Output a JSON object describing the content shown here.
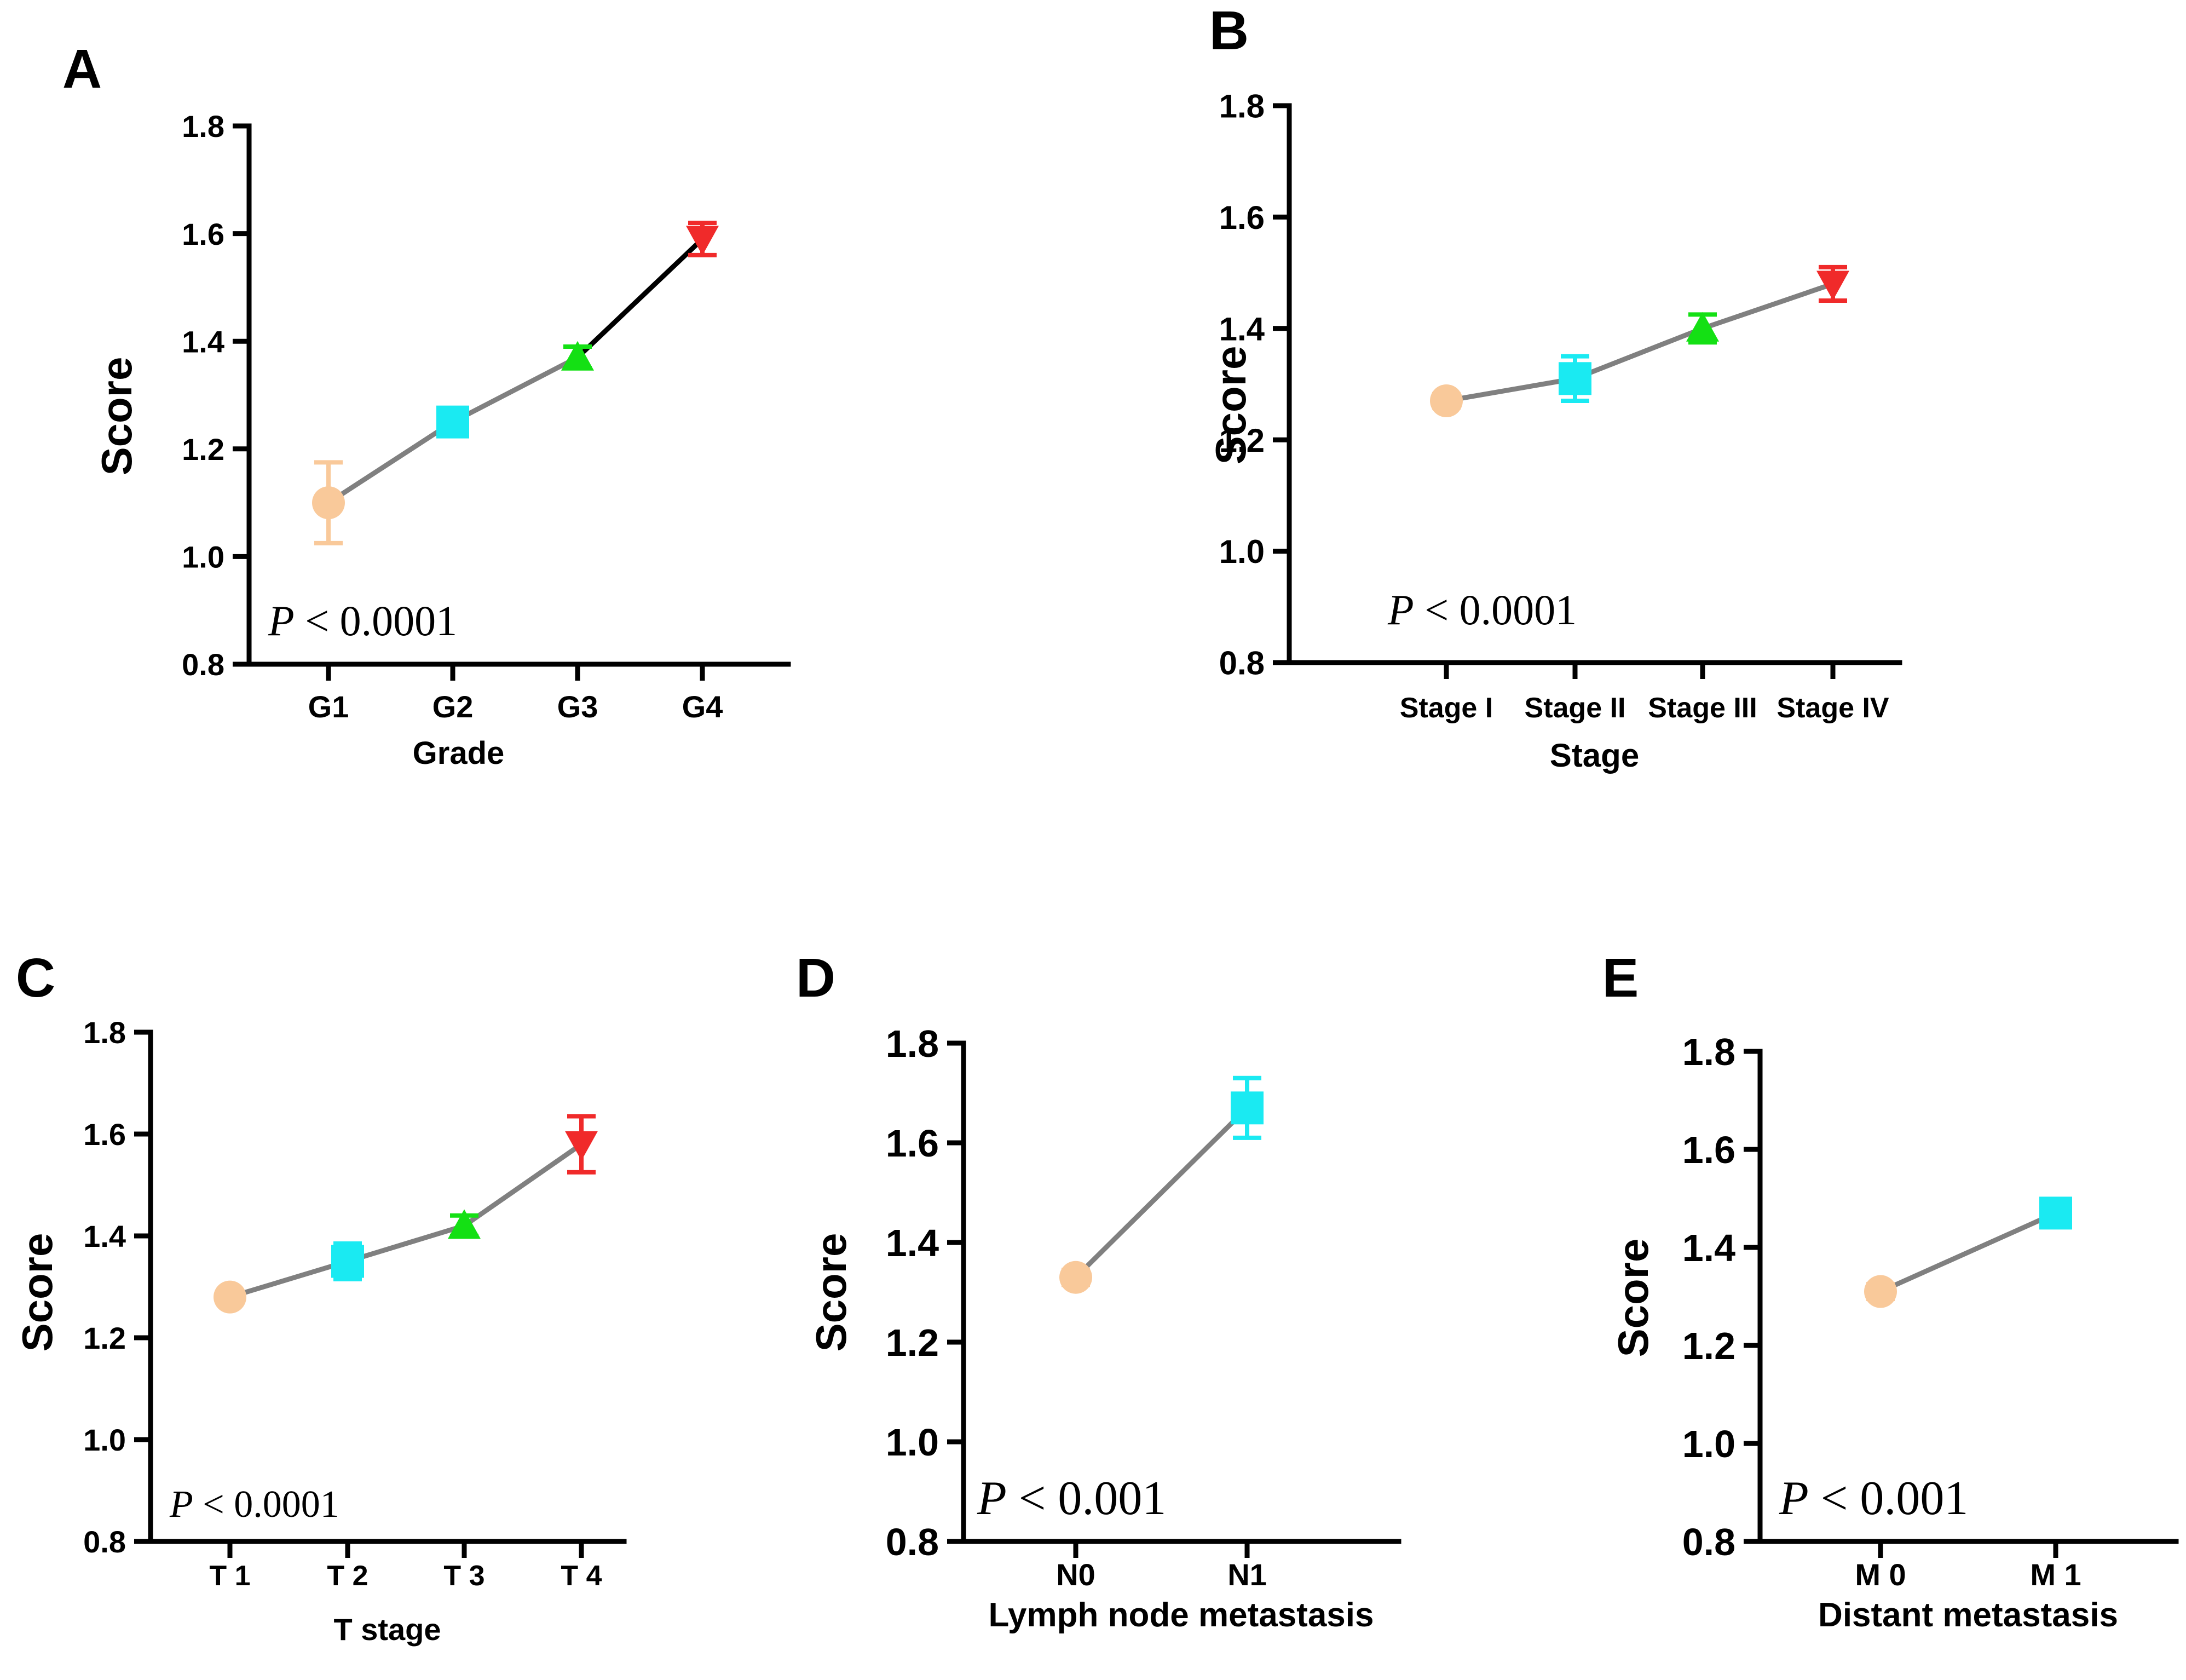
{
  "colors": {
    "orange": "#F9C99A",
    "cyan": "#1AEAF2",
    "green": "#14E014",
    "red": "#F02A2A",
    "line": "#808080",
    "line_dark": "#000000"
  },
  "chart_data": [
    {
      "panel": "A",
      "type": "line",
      "xlabel": "Grade",
      "ylabel": "Score",
      "ylim": [
        0.8,
        1.8
      ],
      "yticks": [
        "0.8",
        "1.0",
        "1.2",
        "1.4",
        "1.6",
        "1.8"
      ],
      "categories": [
        "G1",
        "G2",
        "G3",
        "G4"
      ],
      "values": [
        1.1,
        1.25,
        1.37,
        1.59
      ],
      "errors": [
        0.075,
        0.015,
        0.02,
        0.03
      ],
      "markers": [
        "circle",
        "square",
        "triangle-up",
        "triangle-down"
      ],
      "p_prefix": "P",
      "p_text": " < 0.0001",
      "grid": false
    },
    {
      "panel": "B",
      "type": "line",
      "xlabel": "Stage",
      "ylabel": "Score",
      "ylim": [
        0.8,
        1.8
      ],
      "yticks": [
        "0.8",
        "1.0",
        "1.2",
        "1.4",
        "1.6",
        "1.8"
      ],
      "categories": [
        "Stage I",
        "Stage II",
        "Stage III",
        "Stage IV"
      ],
      "values": [
        1.27,
        1.31,
        1.4,
        1.48
      ],
      "errors": [
        0.012,
        0.04,
        0.025,
        0.03
      ],
      "markers": [
        "circle",
        "square",
        "triangle-up",
        "triangle-down"
      ],
      "p_prefix": "P",
      "p_text": " < 0.0001",
      "grid": false
    },
    {
      "panel": "C",
      "type": "line",
      "xlabel": "T stage",
      "ylabel": "Score",
      "ylim": [
        0.8,
        1.8
      ],
      "yticks": [
        "0.8",
        "1.0",
        "1.2",
        "1.4",
        "1.6",
        "1.8"
      ],
      "categories": [
        "T 1",
        "T 2",
        "T 3",
        "T 4"
      ],
      "values": [
        1.28,
        1.35,
        1.42,
        1.58
      ],
      "errors": [
        0.01,
        0.035,
        0.02,
        0.055
      ],
      "markers": [
        "circle",
        "square",
        "triangle-up",
        "triangle-down"
      ],
      "p_prefix": "P",
      "p_text": " < 0.0001",
      "grid": false
    },
    {
      "panel": "D",
      "type": "line",
      "xlabel": "Lymph node metastasis",
      "ylabel": "Score",
      "ylim": [
        0.8,
        1.8
      ],
      "yticks": [
        "0.8",
        "1.0",
        "1.2",
        "1.4",
        "1.6",
        "1.8"
      ],
      "categories": [
        "N0",
        "N1"
      ],
      "values": [
        1.33,
        1.67
      ],
      "errors": [
        0.015,
        0.06
      ],
      "markers": [
        "circle",
        "square"
      ],
      "p_prefix": "P",
      "p_text": " < 0.001",
      "grid": false
    },
    {
      "panel": "E",
      "type": "line",
      "xlabel": "Distant metastasis",
      "ylabel": "Score",
      "ylim": [
        0.8,
        1.8
      ],
      "yticks": [
        "0.8",
        "1.0",
        "1.2",
        "1.4",
        "1.6",
        "1.8"
      ],
      "categories": [
        "M 0",
        "M 1"
      ],
      "values": [
        1.31,
        1.47
      ],
      "errors": [
        0.015,
        0.02
      ],
      "markers": [
        "circle",
        "square"
      ],
      "p_prefix": "P",
      "p_text": " < 0.001",
      "grid": false
    }
  ]
}
